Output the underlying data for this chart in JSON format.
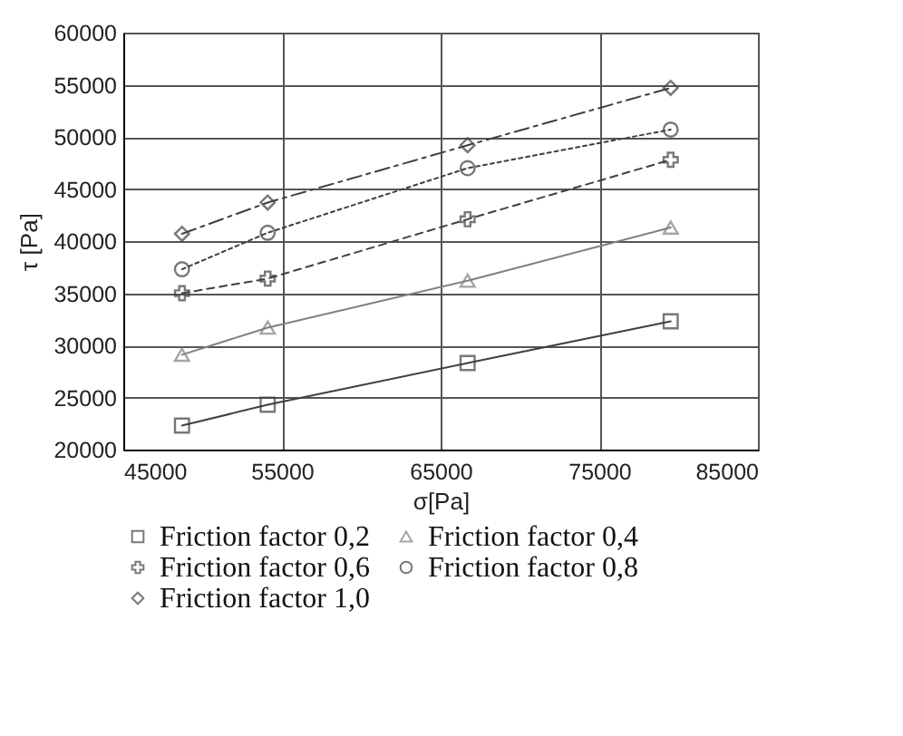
{
  "chart_data": {
    "type": "line",
    "xlabel": "σ[Pa]",
    "ylabel": "τ [Pa]",
    "xlim": [
      45000,
      85000
    ],
    "xticks": [
      45000,
      55000,
      65000,
      75000,
      85000
    ],
    "ylim": [
      20000,
      60000
    ],
    "yticks": [
      20000,
      25000,
      30000,
      35000,
      40000,
      45000,
      50000,
      55000,
      60000
    ],
    "grid": true,
    "legend": "bottom",
    "x": [
      48700,
      54100,
      66700,
      79500
    ],
    "series": [
      {
        "name": "Friction factor 0,2",
        "color": "#404040",
        "marker": "square",
        "line_style": "solid",
        "values": [
          22300,
          24300,
          28300,
          32300
        ]
      },
      {
        "name": "Friction factor 0,4",
        "color": "#808080",
        "marker": "triangle",
        "line_style": "solid",
        "values": [
          29100,
          31700,
          36200,
          41300
        ]
      },
      {
        "name": "Friction factor 0,6",
        "color": "#404040",
        "marker": "cross",
        "line_style": "dashed",
        "values": [
          35000,
          36400,
          42100,
          47800
        ]
      },
      {
        "name": "Friction factor 0,8",
        "color": "#404040",
        "marker": "circle",
        "line_style": "dotted",
        "values": [
          37300,
          40800,
          47000,
          50700
        ]
      },
      {
        "name": "Friction factor 1,0",
        "color": "#404040",
        "marker": "diamond",
        "line_style": "dashdot",
        "values": [
          40700,
          43700,
          49200,
          54700
        ]
      }
    ]
  }
}
